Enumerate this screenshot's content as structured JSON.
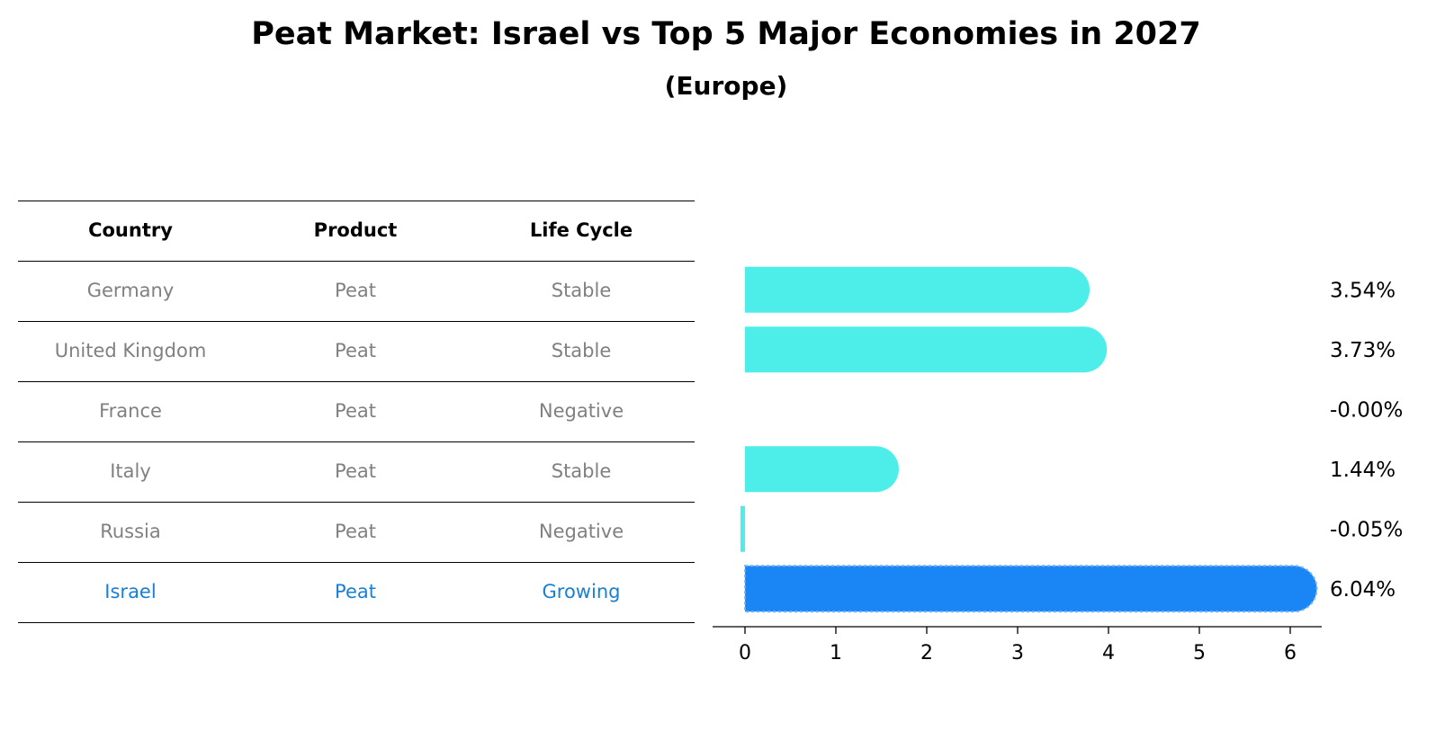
{
  "title": "Peat Market: Israel vs Top 5 Major Economies in 2027",
  "subtitle": "(Europe)",
  "table": {
    "headers": [
      "Country",
      "Product",
      "Life Cycle"
    ],
    "rows": [
      [
        "Germany",
        "Peat",
        "Stable"
      ],
      [
        "United Kingdom",
        "Peat",
        "Stable"
      ],
      [
        "France",
        "Peat",
        "Negative"
      ],
      [
        "Italy",
        "Peat",
        "Stable"
      ],
      [
        "Russia",
        "Peat",
        "Negative"
      ],
      [
        "Israel",
        "Peat",
        "Growing"
      ]
    ],
    "highlight_row": "Israel"
  },
  "colors": {
    "bar": "#4deeea",
    "highlight_bar": "#1a85f4",
    "highlight_text": "#1a7fd4",
    "muted_text": "#808080"
  },
  "chart_data": {
    "type": "bar",
    "orientation": "horizontal",
    "categories": [
      "Germany",
      "United Kingdom",
      "France",
      "Italy",
      "Russia",
      "Israel"
    ],
    "values": [
      3.54,
      3.73,
      -0.0,
      1.44,
      -0.05,
      6.04
    ],
    "value_labels": [
      "3.54%",
      "3.73%",
      "-0.00%",
      "1.44%",
      "-0.05%",
      "6.04%"
    ],
    "highlight": "Israel",
    "xticks": [
      "0",
      "1",
      "2",
      "3",
      "4",
      "5",
      "6"
    ],
    "grid": false
  }
}
